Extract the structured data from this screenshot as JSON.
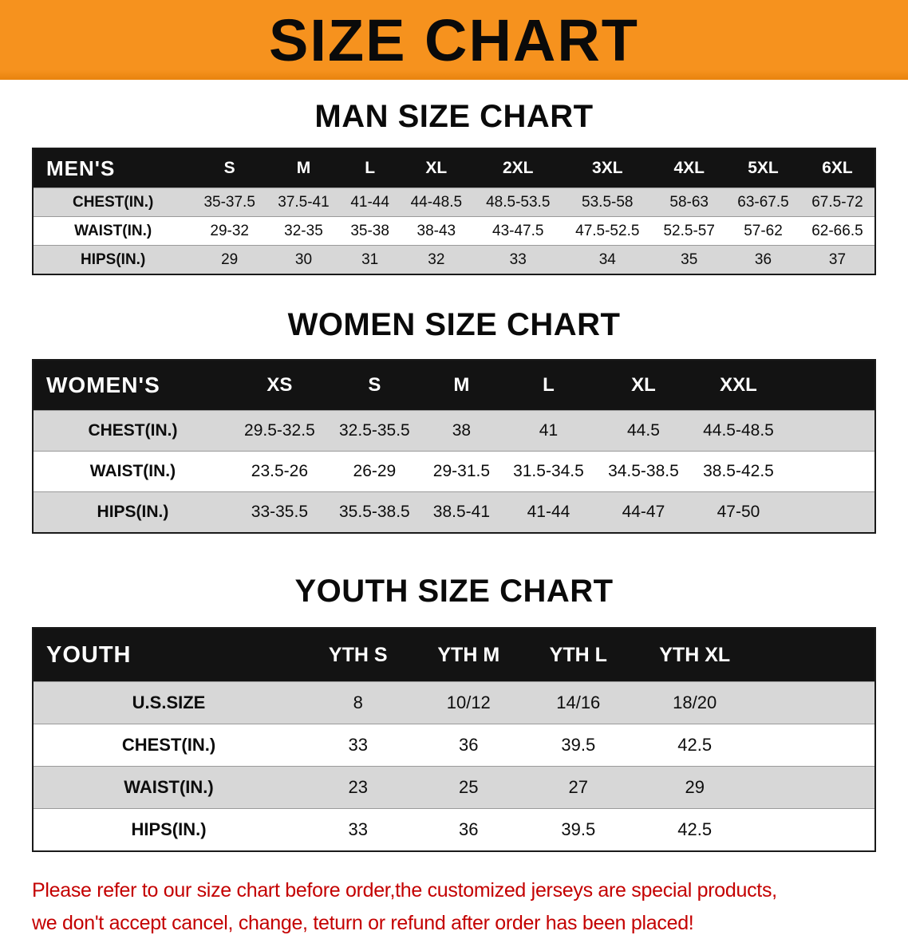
{
  "banner": {
    "title": "SIZE CHART",
    "bg_color": "#f6921e"
  },
  "chart_data": [
    {
      "type": "table",
      "title": "MAN SIZE CHART",
      "header_label": "MEN'S",
      "columns": [
        "S",
        "M",
        "L",
        "XL",
        "2XL",
        "3XL",
        "4XL",
        "5XL",
        "6XL"
      ],
      "rows": [
        {
          "label": "CHEST(IN.)",
          "values": [
            "35-37.5",
            "37.5-41",
            "41-44",
            "44-48.5",
            "48.5-53.5",
            "53.5-58",
            "58-63",
            "63-67.5",
            "67.5-72"
          ]
        },
        {
          "label": "WAIST(IN.)",
          "values": [
            "29-32",
            "32-35",
            "35-38",
            "38-43",
            "43-47.5",
            "47.5-52.5",
            "52.5-57",
            "57-62",
            "62-66.5"
          ]
        },
        {
          "label": "HIPS(IN.)",
          "values": [
            "29",
            "30",
            "31",
            "32",
            "33",
            "34",
            "35",
            "36",
            "37"
          ]
        }
      ]
    },
    {
      "type": "table",
      "title": "WOMEN SIZE CHART",
      "header_label": "WOMEN'S",
      "columns": [
        "XS",
        "S",
        "M",
        "L",
        "XL",
        "XXL"
      ],
      "rows": [
        {
          "label": "CHEST(IN.)",
          "values": [
            "29.5-32.5",
            "32.5-35.5",
            "38",
            "41",
            "44.5",
            "44.5-48.5"
          ]
        },
        {
          "label": "WAIST(IN.)",
          "values": [
            "23.5-26",
            "26-29",
            "29-31.5",
            "31.5-34.5",
            "34.5-38.5",
            "38.5-42.5"
          ]
        },
        {
          "label": "HIPS(IN.)",
          "values": [
            "33-35.5",
            "35.5-38.5",
            "38.5-41",
            "41-44",
            "44-47",
            "47-50"
          ]
        }
      ]
    },
    {
      "type": "table",
      "title": "YOUTH SIZE CHART",
      "header_label": "YOUTH",
      "columns": [
        "YTH S",
        "YTH M",
        "YTH L",
        "YTH XL"
      ],
      "rows": [
        {
          "label": "U.S.SIZE",
          "values": [
            "8",
            "10/12",
            "14/16",
            "18/20"
          ]
        },
        {
          "label": "CHEST(IN.)",
          "values": [
            "33",
            "36",
            "39.5",
            "42.5"
          ]
        },
        {
          "label": "WAIST(IN.)",
          "values": [
            "23",
            "25",
            "27",
            "29"
          ]
        },
        {
          "label": "HIPS(IN.)",
          "values": [
            "33",
            "36",
            "39.5",
            "42.5"
          ]
        }
      ]
    }
  ],
  "footer": {
    "line1": "Please refer to our size chart before order,the customized jerseys are special products,",
    "line2": "we don't accept cancel, change, teturn or refund after order has been placed!",
    "text_color": "#c40000"
  }
}
